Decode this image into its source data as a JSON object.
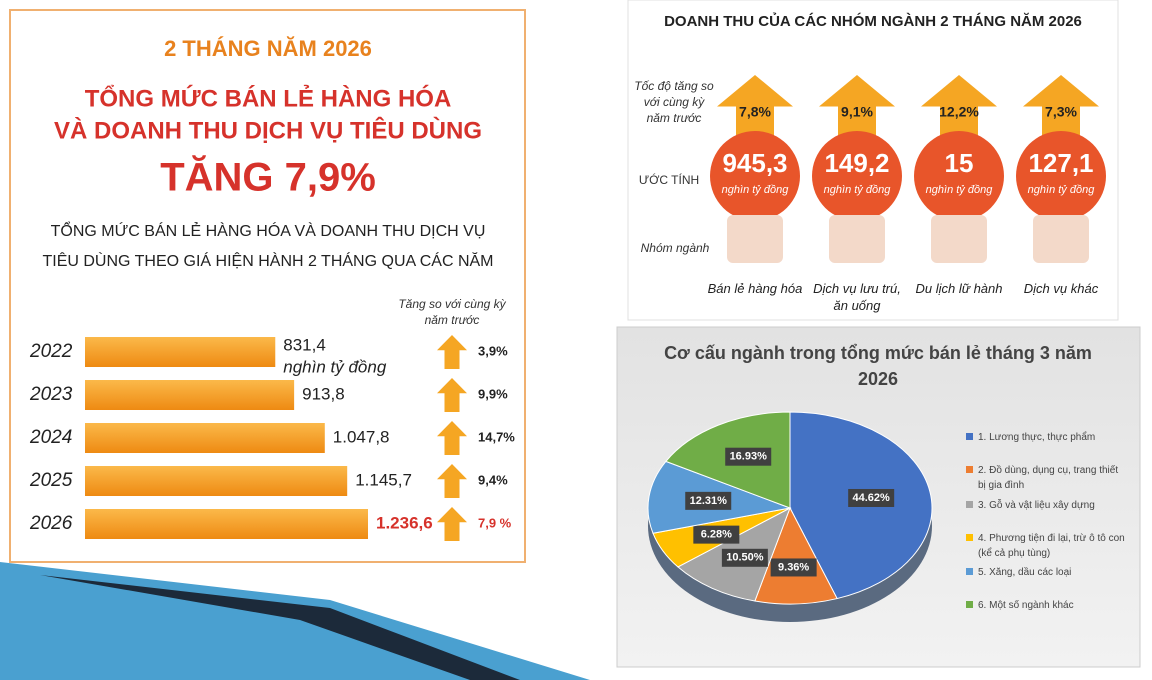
{
  "chart_data": [
    {
      "type": "hbar",
      "title": [
        "2 THÁNG NĂM 2026",
        "TỔNG MỨC BÁN LẺ HÀNG HÓA",
        "VÀ DOANH THU DỊCH VỤ TIÊU DÙNG",
        "TĂNG 7,9%"
      ],
      "subtitle": [
        "TỔNG MỨC BÁN LẺ HÀNG HÓA VÀ DOANH THU DỊCH VỤ",
        "TIÊU DÙNG THEO GIÁ HIỆN HÀNH 2 THÁNG QUA CÁC NĂM"
      ],
      "unit": "nghìn tỷ đồng",
      "growth_title": "Tăng so với cùng kỳ năm trước",
      "categories": [
        "2022",
        "2023",
        "2024",
        "2025",
        "2026"
      ],
      "values": [
        831.4,
        913.8,
        1047.8,
        1145.7,
        1236.6
      ],
      "value_labels": [
        "831,4",
        "913,8",
        "1.047,8",
        "1.145,7",
        "1.236,6"
      ],
      "growth": [
        3.9,
        9.9,
        14.7,
        9.4,
        7.9
      ],
      "growth_labels": [
        "3,9%",
        "9,9%",
        "14,7%",
        "9,4%",
        "7,9 %"
      ],
      "color": "#f39a1e"
    },
    {
      "type": "bubble",
      "title": "DOANH THU CỦA CÁC NHÓM NGÀNH 2 THÁNG NĂM 2026",
      "row_labels": [
        "Tốc độ tăng so với cùng kỳ năm trước",
        "ƯỚC TÍNH",
        "Nhóm ngành"
      ],
      "categories": [
        "Bán lẻ hàng hóa",
        "Dịch vụ lưu trú, ăn uống",
        "Du lịch lữ hành",
        "Dịch vụ khác"
      ],
      "growth": [
        7.8,
        9.1,
        12.2,
        7.3
      ],
      "growth_labels": [
        "7,8%",
        "9,1%",
        "12,2%",
        "7,3%"
      ],
      "values": [
        945.3,
        149.2,
        15,
        127.1
      ],
      "value_labels": [
        "945,3",
        "149,2",
        "15",
        "127,1"
      ],
      "unit": "nghìn tỷ đồng",
      "color": "#e8552a"
    },
    {
      "type": "pie",
      "title": "Cơ cấu ngành trong tổng mức bán lẻ tháng 3 năm 2026",
      "categories": [
        "1. Lương thực, thực phẩm",
        "2. Đồ dùng, dụng cụ, trang thiết bị gia đình",
        "3. Gỗ và vật liệu xây dựng",
        "4. Phương tiện đi lại, trừ ô tô con (kể cả phụ tùng)",
        "5. Xăng, dầu các loại",
        "6. Một số ngành khác"
      ],
      "values": [
        44.62,
        9.36,
        10.5,
        6.28,
        12.31,
        16.93
      ],
      "value_labels": [
        "44.62%",
        "9.36%",
        "10.50%",
        "6.28%",
        "12.31%",
        "16.93%"
      ],
      "colors": [
        "#4472c4",
        "#ed7d31",
        "#a5a5a5",
        "#ffc000",
        "#5b9bd5",
        "#70ad47"
      ],
      "legend": "right"
    }
  ]
}
